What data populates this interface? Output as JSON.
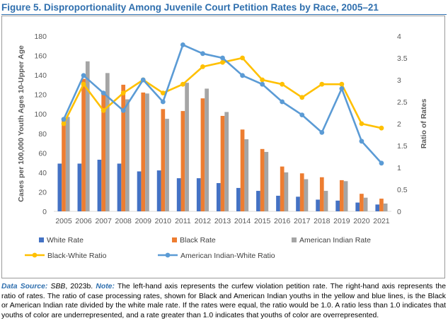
{
  "figure": {
    "title": "Figure 5. Disproportionality Among Juvenile Court Petition Rates by Race, 2005–21",
    "note_source_label": "Data Source:",
    "note_source_ref": "SBB",
    "note_source_rest": ", 2023b.",
    "note_label": "Note:",
    "note_text": "The left-hand axis represents the curfew violation petition rate. The right-hand axis represents the ratio of rates. The ratio of case processing rates, shown for Black and American Indian youths in the yellow and blue lines, is the Black or American Indian rate divided by the white male rate. If the rates were equal, the ratio would be 1.0. A ratio less than 1.0 indicates that youths of color are underrepresented, and a rate greater than 1.0 indicates that youths of color are overrepresented."
  },
  "colors": {
    "white": "#4472c4",
    "black": "#ed7d31",
    "american_indian": "#a5a5a5",
    "black_white_ratio": "#ffc000",
    "american_indian_white_ratio": "#5b9bd5"
  },
  "chart_data": {
    "type": "bar",
    "categories": [
      "2005",
      "2006",
      "2007",
      "2008",
      "2009",
      "2010",
      "2011",
      "2012",
      "2013",
      "2014",
      "2015",
      "2016",
      "2017",
      "2018",
      "2019",
      "2020",
      "2021"
    ],
    "series": [
      {
        "name": "White Rate",
        "kind": "bar",
        "axis": "left",
        "color_key": "white",
        "values": [
          49,
          49,
          53,
          49,
          41,
          42,
          34,
          34,
          29,
          24,
          21,
          16,
          15,
          12,
          11,
          9,
          7
        ]
      },
      {
        "name": "Black Rate",
        "kind": "bar",
        "axis": "left",
        "color_key": "black",
        "values": [
          96,
          136,
          122,
          130,
          122,
          105,
          103,
          116,
          98,
          84,
          64,
          46,
          39,
          35,
          32,
          18,
          13
        ]
      },
      {
        "name": "American Indian Rate",
        "kind": "bar",
        "axis": "left",
        "color_key": "american_indian",
        "values": [
          97,
          154,
          142,
          115,
          121,
          95,
          132,
          126,
          102,
          74,
          61,
          40,
          33,
          21,
          31,
          14,
          8
        ]
      },
      {
        "name": "Black-White Ratio",
        "kind": "line",
        "axis": "right",
        "color_key": "black_white_ratio",
        "values": [
          2.0,
          2.9,
          2.3,
          2.7,
          3.0,
          2.7,
          2.9,
          3.3,
          3.4,
          3.5,
          3.0,
          2.9,
          2.6,
          2.9,
          2.9,
          2.0,
          1.9
        ]
      },
      {
        "name": "American Indian-White Ratio",
        "kind": "line",
        "axis": "right",
        "color_key": "american_indian_white_ratio",
        "values": [
          2.1,
          3.1,
          2.7,
          2.3,
          3.0,
          2.5,
          3.8,
          3.6,
          3.5,
          3.1,
          2.9,
          2.5,
          2.2,
          1.8,
          2.8,
          1.6,
          1.1
        ]
      }
    ],
    "ylabel": "Cases per 100,000 Youth Ages 10-Upper Age",
    "ylim": [
      0,
      180
    ],
    "yticks": [
      0,
      20,
      40,
      60,
      80,
      100,
      120,
      140,
      160,
      180
    ],
    "y2label": "Ratio of Rates",
    "y2lim": [
      0,
      4
    ],
    "y2ticks": [
      "0",
      "0.5",
      "1",
      "1.5",
      "2",
      "2.5",
      "3",
      "3.5",
      "4"
    ],
    "grid": false,
    "legend_position": "bottom"
  }
}
